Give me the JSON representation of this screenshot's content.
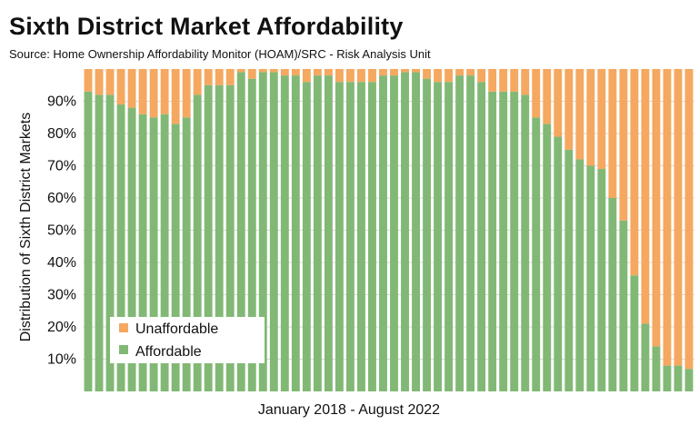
{
  "header": {
    "title": "Sixth District Market Affordability",
    "subtitle": "Source: Home Ownership Affordability Monitor (HOAM)/SRC - Risk Analysis Unit"
  },
  "colors": {
    "affordable": "#82b875",
    "unaffordable": "#f5a860",
    "grid": "#d9d9d9",
    "text": "#111111"
  },
  "chart_data": {
    "type": "bar",
    "stacked": true,
    "xlabel": "January 2018 - August 2022",
    "ylabel": "Distribution of Sixth District Markets",
    "ylim": [
      0,
      100
    ],
    "yticks": [
      "10%",
      "20%",
      "30%",
      "40%",
      "50%",
      "60%",
      "70%",
      "80%",
      "90%"
    ],
    "grid": true,
    "legend": {
      "position": "bottom-left",
      "entries": [
        "Unaffordable",
        "Affordable"
      ]
    },
    "series": [
      {
        "name": "Affordable",
        "values": [
          93,
          92,
          92,
          89,
          88,
          86,
          85,
          86,
          83,
          85,
          92,
          95,
          95,
          95,
          99,
          97,
          99,
          99,
          98,
          98,
          96,
          98,
          98,
          96,
          96,
          96,
          96,
          98,
          98,
          99,
          99,
          97,
          96,
          96,
          98,
          98,
          96,
          93,
          93,
          93,
          92,
          85,
          83,
          79,
          75,
          72,
          70,
          69,
          60,
          53,
          36,
          21,
          14,
          8,
          8,
          7
        ]
      },
      {
        "name": "Unaffordable",
        "values": [
          7,
          8,
          8,
          11,
          12,
          14,
          15,
          14,
          17,
          15,
          8,
          5,
          5,
          5,
          1,
          3,
          1,
          1,
          2,
          2,
          4,
          2,
          2,
          4,
          4,
          4,
          4,
          2,
          2,
          1,
          1,
          3,
          4,
          4,
          2,
          2,
          4,
          7,
          7,
          7,
          8,
          15,
          17,
          21,
          25,
          28,
          30,
          31,
          40,
          47,
          64,
          79,
          86,
          92,
          92,
          93
        ]
      }
    ]
  }
}
